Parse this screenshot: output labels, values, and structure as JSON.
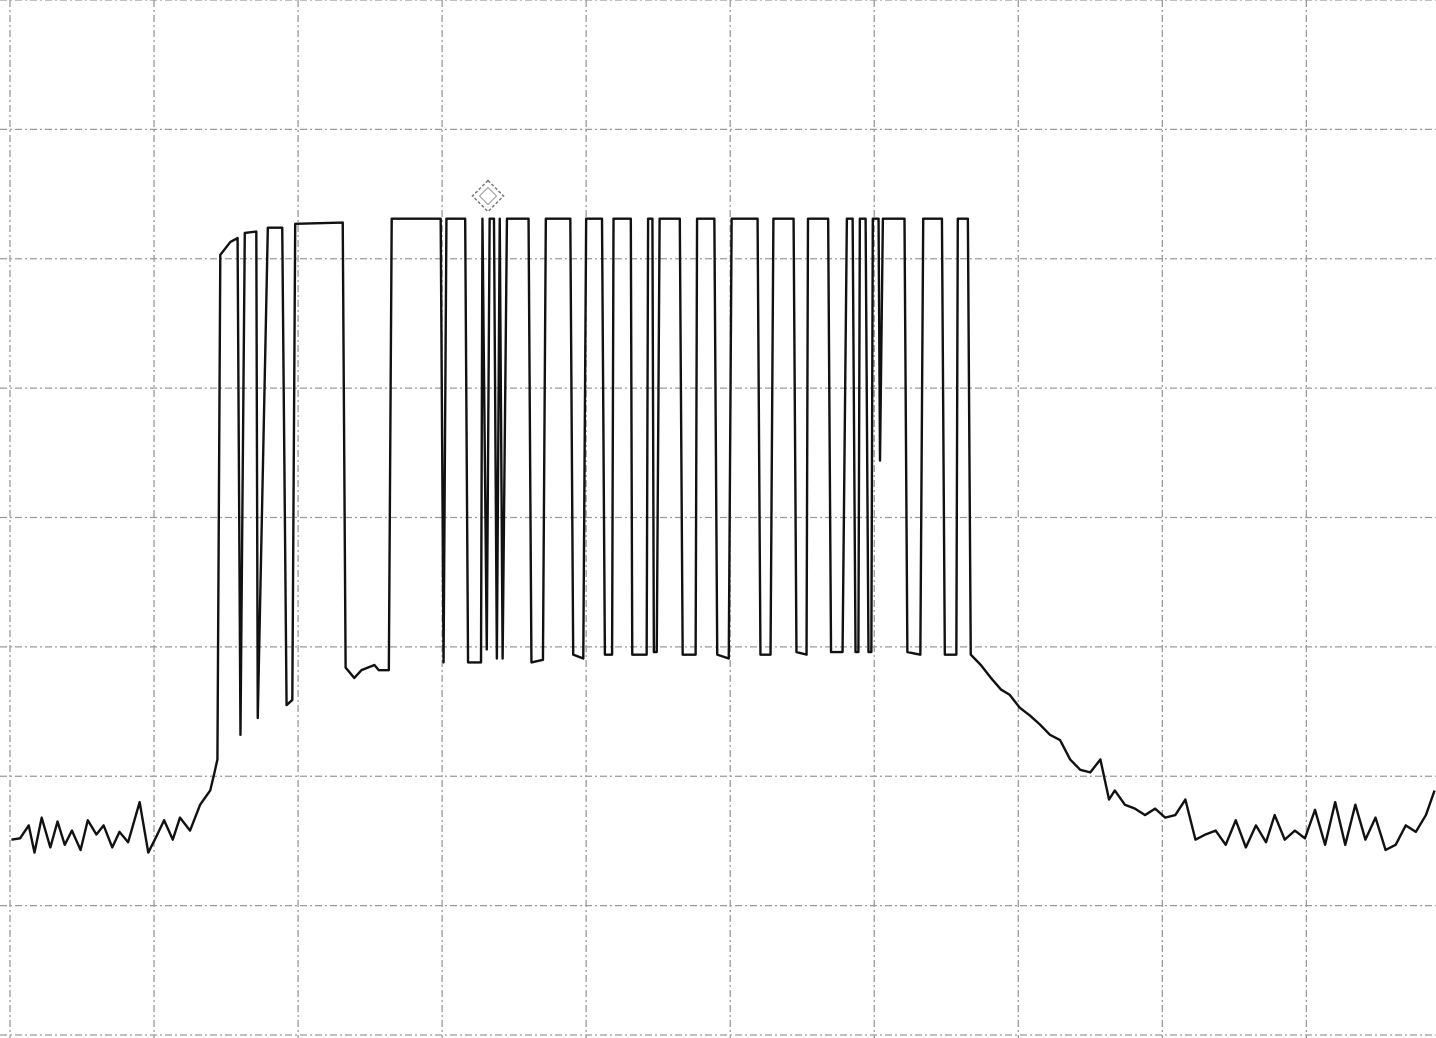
{
  "chart_data": {
    "type": "line",
    "x": [
      0.01,
      0.07,
      0.13,
      0.17,
      0.22,
      0.28,
      0.33,
      0.38,
      0.43,
      0.49,
      0.54,
      0.6,
      0.65,
      0.71,
      0.76,
      0.82,
      0.9,
      0.96,
      1.01,
      1.07,
      1.13,
      1.18,
      1.25,
      1.32,
      1.39,
      1.42,
      1.44,
      1.46,
      1.53,
      1.58,
      1.6,
      1.63,
      1.71,
      1.72,
      1.79,
      1.89,
      1.92,
      1.96,
      1.98,
      2.31,
      2.33,
      2.39,
      2.44,
      2.53,
      2.56,
      2.63,
      2.65,
      2.99,
      3.01,
      3.03,
      3.16,
      3.18,
      3.27,
      3.28,
      3.31,
      3.33,
      3.36,
      3.38,
      3.4,
      3.42,
      3.45,
      3.6,
      3.62,
      3.7,
      3.72,
      3.89,
      3.91,
      3.98,
      4.0,
      4.11,
      4.13,
      4.18,
      4.19,
      4.31,
      4.32,
      4.42,
      4.43,
      4.46,
      4.47,
      4.49,
      4.51,
      4.65,
      4.67,
      4.76,
      4.77,
      4.89,
      4.91,
      4.99,
      5.01,
      5.19,
      5.21,
      5.28,
      5.3,
      5.44,
      5.46,
      5.53,
      5.54,
      5.68,
      5.7,
      5.78,
      5.81,
      5.85,
      5.87,
      5.89,
      5.9,
      5.94,
      5.96,
      5.98,
      5.99,
      6.03,
      6.04,
      6.06,
      6.08,
      6.21,
      6.23,
      6.32,
      6.34,
      6.47,
      6.49,
      6.57,
      6.58,
      6.65,
      6.67,
      6.74,
      6.81,
      6.88,
      6.94,
      7.01,
      7.08,
      7.15,
      7.22,
      7.29,
      7.36,
      7.43,
      7.5,
      7.57,
      7.63,
      7.67,
      7.74,
      7.81,
      7.88,
      7.95,
      8.02,
      8.09,
      8.16,
      8.23,
      8.3,
      8.37,
      8.44,
      8.51,
      8.58,
      8.65,
      8.72,
      8.78,
      8.85,
      8.92,
      8.99,
      9.06,
      9.13,
      9.2,
      9.27,
      9.34,
      9.41,
      9.48,
      9.55,
      9.62,
      9.69,
      9.76,
      9.83,
      9.89
    ],
    "values": [
      1.51,
      1.52,
      1.62,
      1.41,
      1.68,
      1.45,
      1.65,
      1.47,
      1.58,
      1.43,
      1.66,
      1.55,
      1.62,
      1.45,
      1.57,
      1.49,
      1.8,
      1.41,
      1.52,
      1.66,
      1.51,
      1.68,
      1.58,
      1.78,
      1.89,
      2.03,
      2.13,
      6.03,
      6.13,
      6.16,
      2.32,
      6.2,
      6.21,
      2.45,
      6.24,
      6.24,
      2.55,
      2.59,
      6.27,
      6.28,
      2.84,
      2.76,
      2.82,
      2.86,
      2.82,
      2.82,
      6.31,
      6.31,
      2.88,
      6.31,
      6.31,
      2.88,
      2.88,
      6.31,
      2.98,
      6.31,
      6.31,
      2.91,
      6.31,
      2.91,
      6.31,
      6.31,
      2.88,
      2.9,
      6.31,
      6.31,
      2.94,
      2.91,
      6.31,
      6.31,
      2.94,
      2.94,
      6.31,
      6.31,
      2.94,
      2.94,
      6.31,
      6.31,
      2.96,
      2.96,
      6.31,
      6.31,
      2.94,
      2.94,
      6.31,
      6.31,
      2.94,
      2.91,
      6.31,
      6.31,
      2.94,
      2.94,
      6.31,
      6.31,
      2.96,
      2.94,
      6.31,
      6.31,
      2.96,
      2.96,
      6.31,
      6.31,
      2.96,
      2.96,
      6.31,
      6.31,
      2.96,
      2.96,
      6.31,
      6.31,
      4.44,
      6.31,
      6.31,
      6.31,
      2.96,
      2.94,
      6.31,
      6.31,
      2.94,
      2.94,
      6.31,
      6.31,
      2.94,
      2.86,
      2.76,
      2.67,
      2.63,
      2.53,
      2.47,
      2.4,
      2.32,
      2.28,
      2.13,
      2.05,
      2.03,
      2.13,
      1.82,
      1.89,
      1.78,
      1.75,
      1.7,
      1.75,
      1.68,
      1.7,
      1.82,
      1.51,
      1.55,
      1.58,
      1.47,
      1.66,
      1.45,
      1.62,
      1.49,
      1.7,
      1.51,
      1.58,
      1.52,
      1.74,
      1.47,
      1.8,
      1.47,
      1.78,
      1.51,
      1.68,
      1.43,
      1.47,
      1.62,
      1.57,
      1.7,
      1.89
    ],
    "color": "#111111",
    "xlim": [
      0,
      9.9
    ],
    "ylim": [
      0,
      8
    ],
    "xticks": [
      0,
      1,
      2,
      3,
      4,
      5,
      6,
      7,
      8,
      9
    ],
    "yticks": [
      0,
      1,
      2,
      3,
      4,
      5,
      6,
      7,
      8
    ],
    "grid": true
  }
}
